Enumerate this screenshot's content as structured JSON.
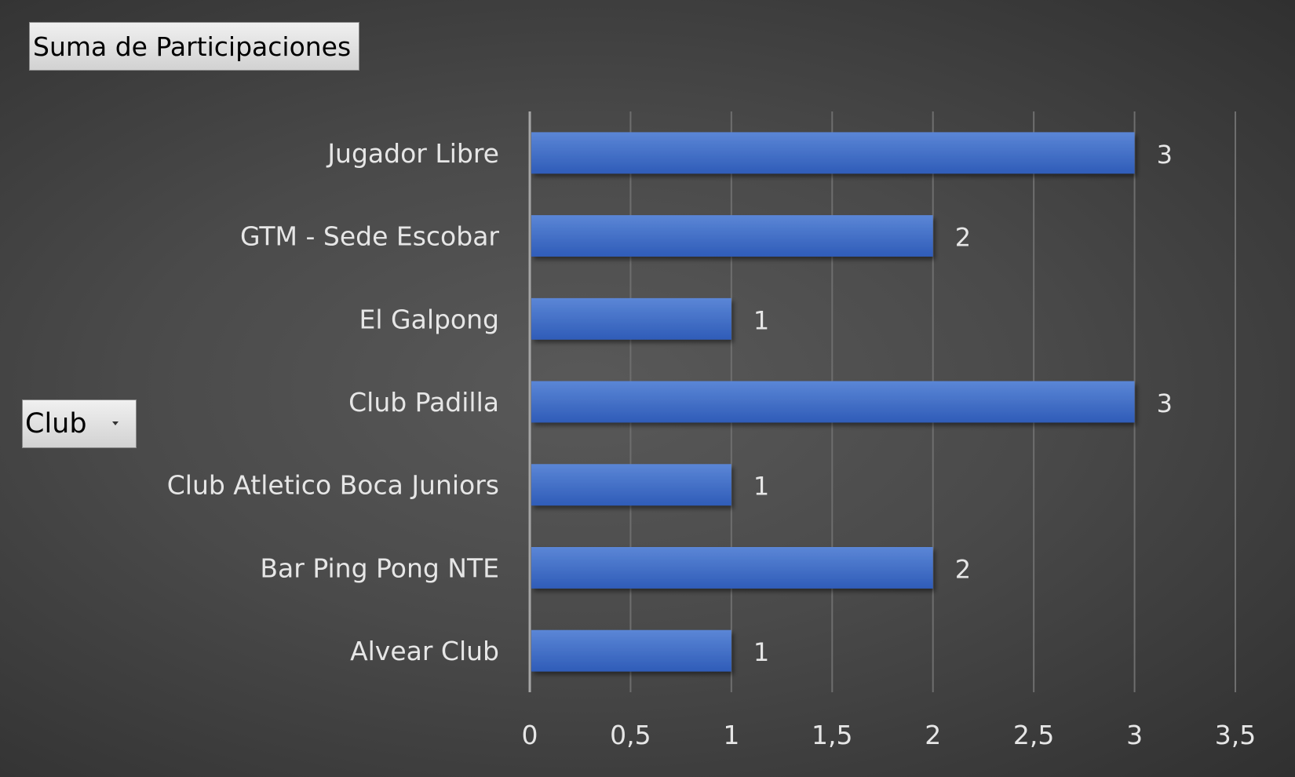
{
  "pivot": {
    "value_field_label": "Suma de Participaciones",
    "axis_field_label": "Club"
  },
  "chart_data": {
    "type": "bar",
    "orientation": "horizontal",
    "title": "",
    "xlabel": "",
    "ylabel": "",
    "categories": [
      "Alvear Club",
      "Bar Ping Pong NTE",
      "Club Atletico Boca Juniors",
      "Club Padilla",
      "El Galpong",
      "GTM - Sede Escobar",
      "Jugador Libre"
    ],
    "values": [
      1,
      2,
      1,
      3,
      1,
      2,
      3
    ],
    "xlim": [
      0,
      3.5
    ],
    "x_ticks": [
      0,
      0.5,
      1,
      1.5,
      2,
      2.5,
      3,
      3.5
    ],
    "x_tick_labels": [
      "0",
      "0,5",
      "1",
      "1,5",
      "2",
      "2,5",
      "3",
      "3,5"
    ],
    "data_labels": true,
    "grid": "vertical",
    "legend": "none",
    "colors": {
      "bar": "#4472c4",
      "background": "#404040",
      "text": "#e6e6e6",
      "gridline": "#6e6e6e"
    }
  }
}
